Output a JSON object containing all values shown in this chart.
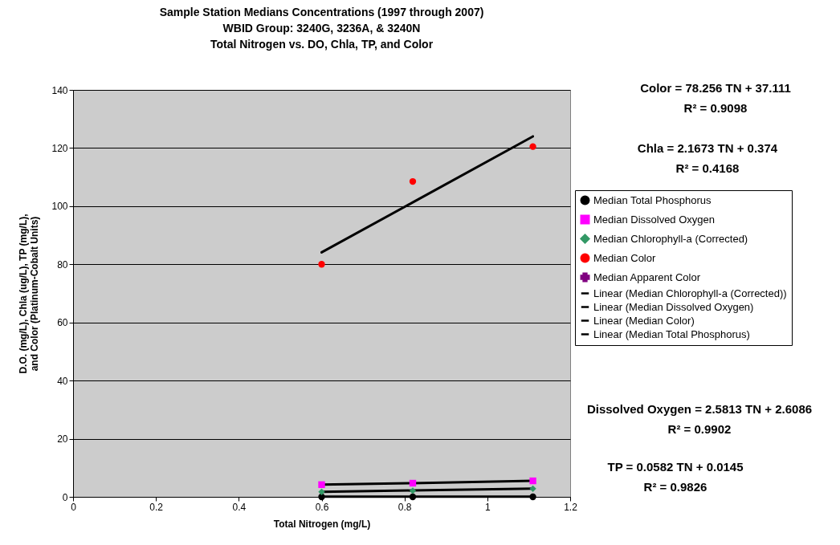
{
  "chart_data": {
    "type": "scatter",
    "title": [
      "Sample Station Medians Concentrations (1997 through 2007)",
      "WBID Group: 3240G, 3236A, & 3240N",
      "Total Nitrogen vs. DO, Chla, TP, and Color"
    ],
    "xlabel": "Total Nitrogen (mg/L)",
    "ylabel": [
      "D.O. (mg/L), Chla (ug/L), TP (mg/L),",
      "and Color (Platinum-Cobalt Units)"
    ],
    "x": [
      0.6,
      0.82,
      1.11
    ],
    "xlim": [
      0,
      1.2
    ],
    "xticks": [
      0,
      0.2,
      0.4,
      0.6,
      0.8,
      1,
      1.2
    ],
    "ylim": [
      0,
      140
    ],
    "yticks": [
      0,
      20,
      40,
      60,
      80,
      100,
      120,
      140
    ],
    "grid": "y",
    "legend": "right",
    "series": [
      {
        "name": "Median Total Phosphorus",
        "type": "scatter",
        "marker": "circle",
        "color": "#000000",
        "values": [
          0,
          0,
          0
        ]
      },
      {
        "name": "Median Dissolved Oxygen",
        "type": "scatter",
        "marker": "square",
        "color": "#ff00ff",
        "values": [
          4.2,
          4.7,
          5.5
        ]
      },
      {
        "name": "Median Chlorophyll-a (Corrected)",
        "type": "scatter",
        "marker": "diamond",
        "color": "#339966",
        "values": [
          1.7,
          2.1,
          2.8
        ]
      },
      {
        "name": "Median Color",
        "type": "scatter",
        "marker": "circle",
        "color": "#ff0000",
        "values": [
          80,
          108.5,
          120.5
        ]
      },
      {
        "name": "Median Apparent Color",
        "type": "scatter",
        "marker": "cross",
        "color": "#800080",
        "values": [
          null,
          null,
          null
        ]
      },
      {
        "name": "Linear (Median Chlorophyll-a (Corrected))",
        "type": "line",
        "color": "#000000",
        "line_style": "solid",
        "values": [
          1.7,
          2.2,
          2.8
        ]
      },
      {
        "name": "Linear (Median Dissolved Oxygen)",
        "type": "line",
        "color": "#000000",
        "line_style": "solid",
        "values": [
          4.2,
          4.7,
          5.5
        ]
      },
      {
        "name": "Linear (Median Color)",
        "type": "line",
        "color": "#000000",
        "line_style": "solid",
        "values": [
          84.1,
          101.3,
          124
        ]
      },
      {
        "name": "Linear (Median Total Phosphorus)",
        "type": "line",
        "color": "#000000",
        "line_style": "solid",
        "values": [
          0.05,
          0.06,
          0.08
        ]
      }
    ],
    "annotations": [
      "Color = 78.256 TN + 37.111",
      "R² = 0.9098",
      "Chla = 2.1673 TN + 0.374",
      "R² = 0.4168",
      "Dissolved Oxygen = 2.5813 TN + 2.6086",
      "R² = 0.9902",
      "TP = 0.0582 TN + 0.0145",
      "R² = 0.9826"
    ]
  }
}
